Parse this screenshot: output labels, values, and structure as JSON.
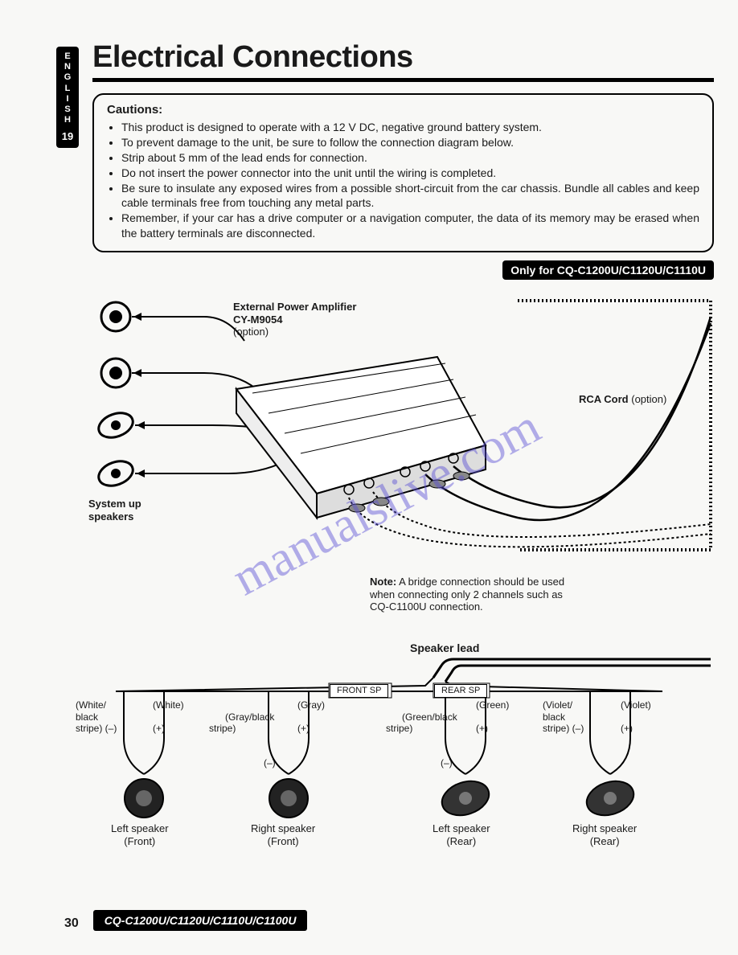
{
  "lang_tab": {
    "letters": "ENGLISH",
    "page_index": "19"
  },
  "title": "Electrical Connections",
  "cautions": {
    "heading": "Cautions:",
    "items": [
      "This product is designed to operate with a 12 V DC, negative ground battery system.",
      "To prevent damage to the unit, be sure to follow the connection diagram below.",
      "Strip about 5 mm of the lead ends for connection.",
      "Do not insert the power connector into the unit until the wiring is completed.",
      "Be sure to insulate any exposed wires from a possible short-circuit from the car chassis. Bundle all cables and keep cable terminals free from touching any metal parts.",
      "Remember, if your car has a drive computer or a navigation computer, the data of its memory may be erased when the battery terminals are disconnected."
    ]
  },
  "only_badge": "Only for CQ-C1200U/C1120U/C1110U",
  "amp": {
    "title": "External Power Amplifier",
    "model": "CY-M9054",
    "option": "(option)"
  },
  "system_speakers": "System up\nspeakers",
  "rca_cord": {
    "label": "RCA Cord",
    "option": "(option)"
  },
  "note": {
    "label": "Note:",
    "text": " A bridge connection should be used when connecting only 2 channels such as CQ-C1100U connection."
  },
  "speaker_lead": "Speaker lead",
  "sp_badges": {
    "front": "FRONT SP",
    "rear": "REAR SP"
  },
  "speakers": [
    {
      "neg": "(White/\nblack\nstripe) (–)",
      "pos": "(White)",
      "posmark": "(+)",
      "name": "Left speaker\n(Front)",
      "shape": "round"
    },
    {
      "neg": "(Gray/black\nstripe)",
      "negmark": "(–)",
      "pos": "(Gray)",
      "posmark": "(+)",
      "name": "Right speaker\n(Front)",
      "shape": "round"
    },
    {
      "neg": "(Green/black\nstripe)",
      "negmark": "(–)",
      "pos": "(Green)",
      "posmark": "(+)",
      "name": "Left speaker\n(Rear)",
      "shape": "oval"
    },
    {
      "neg": "(Violet/\nblack\nstripe) (–)",
      "pos": "(Violet)",
      "posmark": "(+)",
      "name": "Right speaker\n(Rear)",
      "shape": "oval"
    }
  ],
  "watermark": "manualslive.com",
  "footer": {
    "page": "30",
    "models": "CQ-C1200U/C1120U/C1110U/C1100U"
  },
  "colors": {
    "ink": "#1a1a1a",
    "paper": "#f8f8f6",
    "watermark": "#5a4fd6"
  }
}
